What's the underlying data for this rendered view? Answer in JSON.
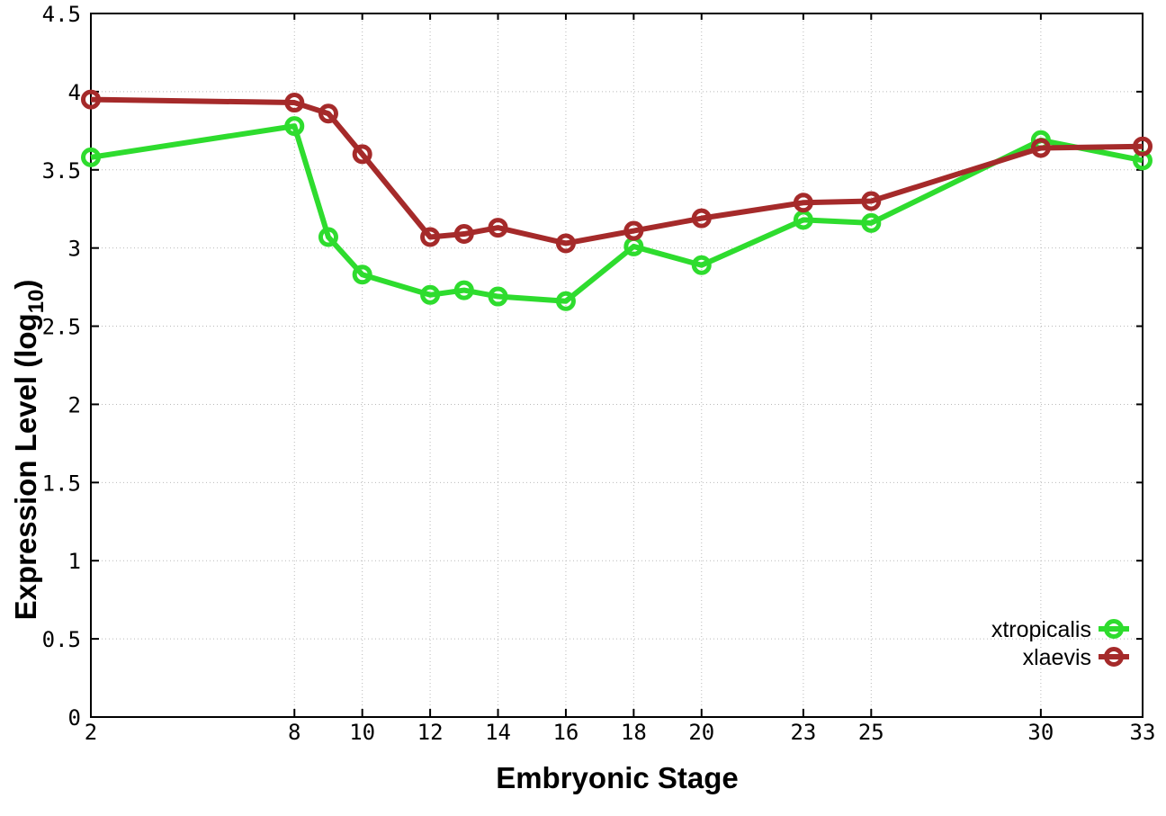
{
  "chart_data": {
    "type": "line",
    "title": "",
    "xlabel": "Embryonic Stage",
    "ylabel": "Expression Level (log10)",
    "ylabel_parts": {
      "main": "Expression Level (log",
      "sub": "10",
      "end": ")"
    },
    "x": [
      2,
      8,
      9,
      10,
      12,
      13,
      14,
      16,
      18,
      20,
      23,
      25,
      30,
      33
    ],
    "series": [
      {
        "name": "xtropicalis",
        "color": "#2edc2e",
        "values": [
          3.58,
          3.78,
          3.07,
          2.83,
          2.7,
          2.73,
          2.69,
          2.66,
          3.01,
          2.89,
          3.18,
          3.16,
          3.69,
          3.56
        ]
      },
      {
        "name": "xlaevis",
        "color": "#a52a2a",
        "values": [
          3.95,
          3.93,
          3.86,
          3.6,
          3.07,
          3.09,
          3.13,
          3.03,
          3.11,
          3.19,
          3.29,
          3.3,
          3.64,
          3.65
        ]
      }
    ],
    "xlim": [
      2,
      33
    ],
    "ylim": [
      0,
      4.5
    ],
    "xticks": [
      2,
      8,
      10,
      12,
      14,
      16,
      18,
      20,
      23,
      25,
      30,
      33
    ],
    "xtick_labels": [
      "2",
      "8",
      "10",
      "12",
      "14",
      "16",
      "18",
      "20",
      "23",
      "25",
      "30",
      "33"
    ],
    "yticks": [
      0,
      0.5,
      1,
      1.5,
      2,
      2.5,
      3,
      3.5,
      4,
      4.5
    ],
    "ytick_labels": [
      "0",
      "0.5",
      "1",
      "1.5",
      "2",
      "2.5",
      "3",
      "3.5",
      "4",
      "4.5"
    ],
    "grid": true,
    "legend_position": "bottom-right",
    "marker": "open-circle",
    "colors": {
      "background": "#ffffff",
      "grid": "#b9b9b9",
      "axis": "#000000",
      "xtropicalis": "#2edc2e",
      "xlaevis": "#a52a2a"
    }
  }
}
